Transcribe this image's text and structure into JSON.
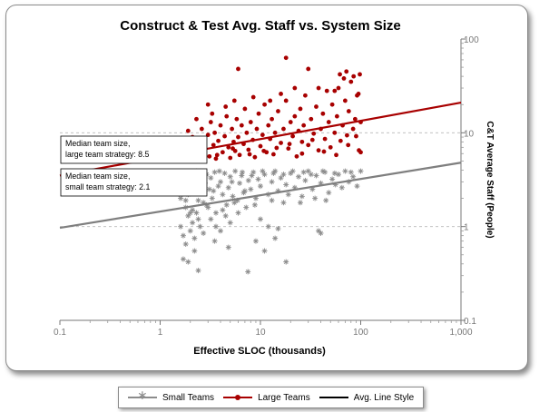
{
  "chart_data": {
    "type": "scatter",
    "title": "Construct & Test Avg. Staff vs. System Size",
    "xlabel": "Effective SLOC (thousands)",
    "ylabel": "C&T Average Staff (People)",
    "x_scale": "log",
    "y_scale": "log",
    "xlim": [
      0.1,
      1000
    ],
    "ylim": [
      0.1,
      100
    ],
    "x_ticks": [
      "0.1",
      "1",
      "10",
      "100",
      "1,000"
    ],
    "y_ticks": [
      "0.1",
      "1",
      "10",
      "100"
    ],
    "y_axis_position": "right",
    "grid": "horizontal dashed",
    "legend": "bottom",
    "series": [
      {
        "name": "Small Teams",
        "marker": "asterisk",
        "color": "#8c8c8c",
        "points": [
          [
            1.5,
            3.8
          ],
          [
            1.6,
            3.2
          ],
          [
            1.7,
            2.6
          ],
          [
            1.8,
            1.9
          ],
          [
            1.9,
            2.2
          ],
          [
            2.0,
            3.5
          ],
          [
            2.1,
            1.5
          ],
          [
            2.2,
            2.8
          ],
          [
            2.3,
            3.9
          ],
          [
            2.4,
            1.2
          ],
          [
            2.5,
            2.4
          ],
          [
            2.6,
            3.1
          ],
          [
            2.7,
            1.8
          ],
          [
            2.8,
            2.9
          ],
          [
            2.9,
            3.6
          ],
          [
            3.0,
            1.6
          ],
          [
            3.1,
            2.5
          ],
          [
            3.2,
            3.3
          ],
          [
            3.3,
            2.0
          ],
          [
            3.5,
            3.8
          ],
          [
            3.6,
            1.4
          ],
          [
            3.8,
            2.7
          ],
          [
            4.0,
            3.0
          ],
          [
            4.2,
            2.2
          ],
          [
            4.4,
            3.7
          ],
          [
            4.6,
            1.7
          ],
          [
            4.8,
            2.6
          ],
          [
            5.0,
            3.4
          ],
          [
            5.3,
            2.1
          ],
          [
            5.6,
            3.9
          ],
          [
            5.9,
            1.9
          ],
          [
            6.2,
            2.9
          ],
          [
            6.5,
            3.5
          ],
          [
            6.8,
            2.3
          ],
          [
            7.2,
            1.6
          ],
          [
            7.6,
            3.1
          ],
          [
            8.0,
            2.5
          ],
          [
            8.5,
            3.8
          ],
          [
            9.0,
            2.0
          ],
          [
            9.5,
            3.2
          ],
          [
            10,
            2.7
          ],
          [
            11,
            3.6
          ],
          [
            12,
            2.2
          ],
          [
            13,
            3.0
          ],
          [
            14,
            3.9
          ],
          [
            15,
            2.4
          ],
          [
            16,
            3.3
          ],
          [
            17,
            1.8
          ],
          [
            18,
            2.8
          ],
          [
            20,
            3.7
          ],
          [
            22,
            2.6
          ],
          [
            24,
            3.4
          ],
          [
            26,
            2.1
          ],
          [
            28,
            3.1
          ],
          [
            30,
            3.9
          ],
          [
            33,
            2.5
          ],
          [
            36,
            3.5
          ],
          [
            40,
            2.9
          ],
          [
            44,
            3.8
          ],
          [
            48,
            2.3
          ],
          [
            52,
            3.2
          ],
          [
            56,
            2.8
          ],
          [
            60,
            3.6
          ],
          [
            65,
            2.6
          ],
          [
            70,
            3.9
          ],
          [
            76,
            3.0
          ],
          [
            84,
            3.4
          ],
          [
            92,
            2.7
          ],
          [
            100,
            3.9
          ],
          [
            1.6,
            1.0
          ],
          [
            1.7,
            0.8
          ],
          [
            1.8,
            0.65
          ],
          [
            1.9,
            1.3
          ],
          [
            2.0,
            0.9
          ],
          [
            2.1,
            1.1
          ],
          [
            2.2,
            0.75
          ],
          [
            2.3,
            1.4
          ],
          [
            2.5,
            1.0
          ],
          [
            2.7,
            0.85
          ],
          [
            1.7,
            0.45
          ],
          [
            1.9,
            0.42
          ],
          [
            2.2,
            0.55
          ],
          [
            2.4,
            0.34
          ],
          [
            3.2,
            1.2
          ],
          [
            3.6,
            1.0
          ],
          [
            4.0,
            0.9
          ],
          [
            4.5,
            1.3
          ],
          [
            5.0,
            1.1
          ],
          [
            3.5,
            0.7
          ],
          [
            6.0,
            1.4
          ],
          [
            4.8,
            0.6
          ],
          [
            7.5,
            0.33
          ],
          [
            9.0,
            0.7
          ],
          [
            10,
            1.2
          ],
          [
            12,
            1.0
          ],
          [
            18,
            0.42
          ],
          [
            15,
            0.95
          ],
          [
            11,
            0.55
          ],
          [
            38,
            0.9
          ],
          [
            40,
            0.85
          ],
          [
            14,
            0.75
          ],
          [
            1.6,
            2.0
          ],
          [
            1.8,
            1.6
          ],
          [
            2.0,
            1.4
          ],
          [
            2.4,
            1.9
          ],
          [
            2.9,
            1.7
          ],
          [
            3.4,
            2.4
          ],
          [
            4.2,
            1.5
          ],
          [
            5.5,
            1.8
          ],
          [
            7.0,
            2.4
          ],
          [
            8.8,
            1.7
          ],
          [
            13,
            1.9
          ],
          [
            19,
            2.2
          ],
          [
            25,
            1.8
          ],
          [
            35,
            2.0
          ],
          [
            45,
            1.9
          ],
          [
            1.7,
            3.0
          ],
          [
            2.6,
            3.7
          ],
          [
            3.9,
            3.9
          ],
          [
            5.2,
            3.0
          ],
          [
            6.6,
            3.8
          ],
          [
            8.2,
            3.5
          ],
          [
            10.5,
            3.9
          ],
          [
            13.5,
            3.7
          ],
          [
            17,
            3.6
          ],
          [
            21,
            3.9
          ],
          [
            27,
            3.8
          ],
          [
            32,
            3.6
          ],
          [
            42,
            3.9
          ],
          [
            55,
            3.7
          ],
          [
            80,
            3.8
          ]
        ]
      },
      {
        "name": "Large Teams",
        "marker": "circle",
        "color": "#a80000",
        "points": [
          [
            1.6,
            5.5
          ],
          [
            1.7,
            6.5
          ],
          [
            1.8,
            8.0
          ],
          [
            1.9,
            5.0
          ],
          [
            2.0,
            7.0
          ],
          [
            2.1,
            9.0
          ],
          [
            2.2,
            6.0
          ],
          [
            2.4,
            5.2
          ],
          [
            2.5,
            8.5
          ],
          [
            2.6,
            11
          ],
          [
            2.8,
            6.8
          ],
          [
            3.0,
            9.5
          ],
          [
            3.1,
            5.6
          ],
          [
            3.2,
            13
          ],
          [
            3.4,
            7.4
          ],
          [
            3.5,
            10
          ],
          [
            3.6,
            5.3
          ],
          [
            3.8,
            8.2
          ],
          [
            4.0,
            12
          ],
          [
            4.2,
            6.2
          ],
          [
            4.4,
            9.2
          ],
          [
            4.6,
            15
          ],
          [
            4.8,
            7.0
          ],
          [
            5.0,
            5.4
          ],
          [
            5.2,
            11
          ],
          [
            5.4,
            8.0
          ],
          [
            5.6,
            6.4
          ],
          [
            5.8,
            14
          ],
          [
            6.0,
            9.0
          ],
          [
            6.2,
            5.8
          ],
          [
            6.5,
            12
          ],
          [
            6.8,
            7.6
          ],
          [
            7.0,
            18
          ],
          [
            7.3,
            10
          ],
          [
            7.6,
            6.6
          ],
          [
            8.0,
            13
          ],
          [
            8.4,
            8.4
          ],
          [
            8.8,
            5.5
          ],
          [
            9.2,
            11
          ],
          [
            9.6,
            16
          ],
          [
            10,
            7.2
          ],
          [
            10.5,
            9.5
          ],
          [
            11,
            20
          ],
          [
            11.5,
            6.2
          ],
          [
            12,
            12
          ],
          [
            12.5,
            8.6
          ],
          [
            13,
            14
          ],
          [
            13.5,
            5.9
          ],
          [
            14,
            10
          ],
          [
            15,
            17
          ],
          [
            16,
            7.8
          ],
          [
            17,
            11
          ],
          [
            18,
            22
          ],
          [
            19,
            6.8
          ],
          [
            20,
            13
          ],
          [
            21,
            9.2
          ],
          [
            22,
            15
          ],
          [
            23,
            5.6
          ],
          [
            24,
            10.5
          ],
          [
            25,
            18
          ],
          [
            26,
            8.0
          ],
          [
            27,
            12
          ],
          [
            28,
            25
          ],
          [
            30,
            7.4
          ],
          [
            32,
            14
          ],
          [
            34,
            9.8
          ],
          [
            36,
            19
          ],
          [
            38,
            6.5
          ],
          [
            40,
            11
          ],
          [
            42,
            16
          ],
          [
            44,
            8.6
          ],
          [
            46,
            28
          ],
          [
            48,
            13
          ],
          [
            50,
            7.0
          ],
          [
            52,
            20
          ],
          [
            55,
            10
          ],
          [
            58,
            15
          ],
          [
            60,
            30
          ],
          [
            63,
            8.2
          ],
          [
            66,
            12
          ],
          [
            70,
            22
          ],
          [
            73,
            9.4
          ],
          [
            76,
            17
          ],
          [
            80,
            35
          ],
          [
            84,
            11
          ],
          [
            88,
            14
          ],
          [
            92,
            25
          ],
          [
            96,
            6.5
          ],
          [
            100,
            13
          ],
          [
            3.0,
            20
          ],
          [
            4.5,
            19
          ],
          [
            6.0,
            48
          ],
          [
            18,
            63
          ],
          [
            30,
            48
          ],
          [
            38,
            30
          ],
          [
            62,
            42
          ],
          [
            72,
            45
          ],
          [
            85,
            40
          ],
          [
            95,
            26
          ],
          [
            2.3,
            14
          ],
          [
            3.3,
            16
          ],
          [
            5.5,
            22
          ],
          [
            8.5,
            24
          ],
          [
            12.5,
            22
          ],
          [
            16,
            26
          ],
          [
            22,
            30
          ],
          [
            55,
            28
          ],
          [
            68,
            38
          ],
          [
            98,
            42
          ],
          [
            1.9,
            10.5
          ],
          [
            2.7,
            7.5
          ],
          [
            3.7,
            5.8
          ],
          [
            5.3,
            6.8
          ],
          [
            7.8,
            5.9
          ],
          [
            10.8,
            6.4
          ],
          [
            14.5,
            6.9
          ],
          [
            19.5,
            7.6
          ],
          [
            26,
            6.0
          ],
          [
            33,
            8.4
          ],
          [
            43,
            6.3
          ],
          [
            57,
            5.8
          ],
          [
            75,
            7.4
          ],
          [
            90,
            9.2
          ],
          [
            100,
            6.2
          ]
        ]
      }
    ],
    "trend_lines": [
      {
        "name": "Large team average",
        "color": "#a80000",
        "from": [
          0.1,
          3.5
        ],
        "to": [
          1000,
          21
        ]
      },
      {
        "name": "Small team average",
        "color": "#7f7f7f",
        "from": [
          0.1,
          0.97
        ],
        "to": [
          1000,
          4.8
        ]
      }
    ],
    "annotations": [
      {
        "lines": [
          "Median team size,",
          "large team strategy: 8.5"
        ]
      },
      {
        "lines": [
          "Median team size,",
          "small team strategy: 2.1"
        ]
      }
    ],
    "legend_items": [
      {
        "label": "Small Teams",
        "marker": "asterisk",
        "line": true,
        "color": "#8c8c8c",
        "line_color": "#8c8c8c"
      },
      {
        "label": "Large Teams",
        "marker": "circle",
        "line": true,
        "color": "#a80000",
        "line_color": "#a80000"
      },
      {
        "label": "Avg. Line Style",
        "marker": "none",
        "line": true,
        "color": "#000000",
        "line_color": "#000000"
      }
    ]
  }
}
